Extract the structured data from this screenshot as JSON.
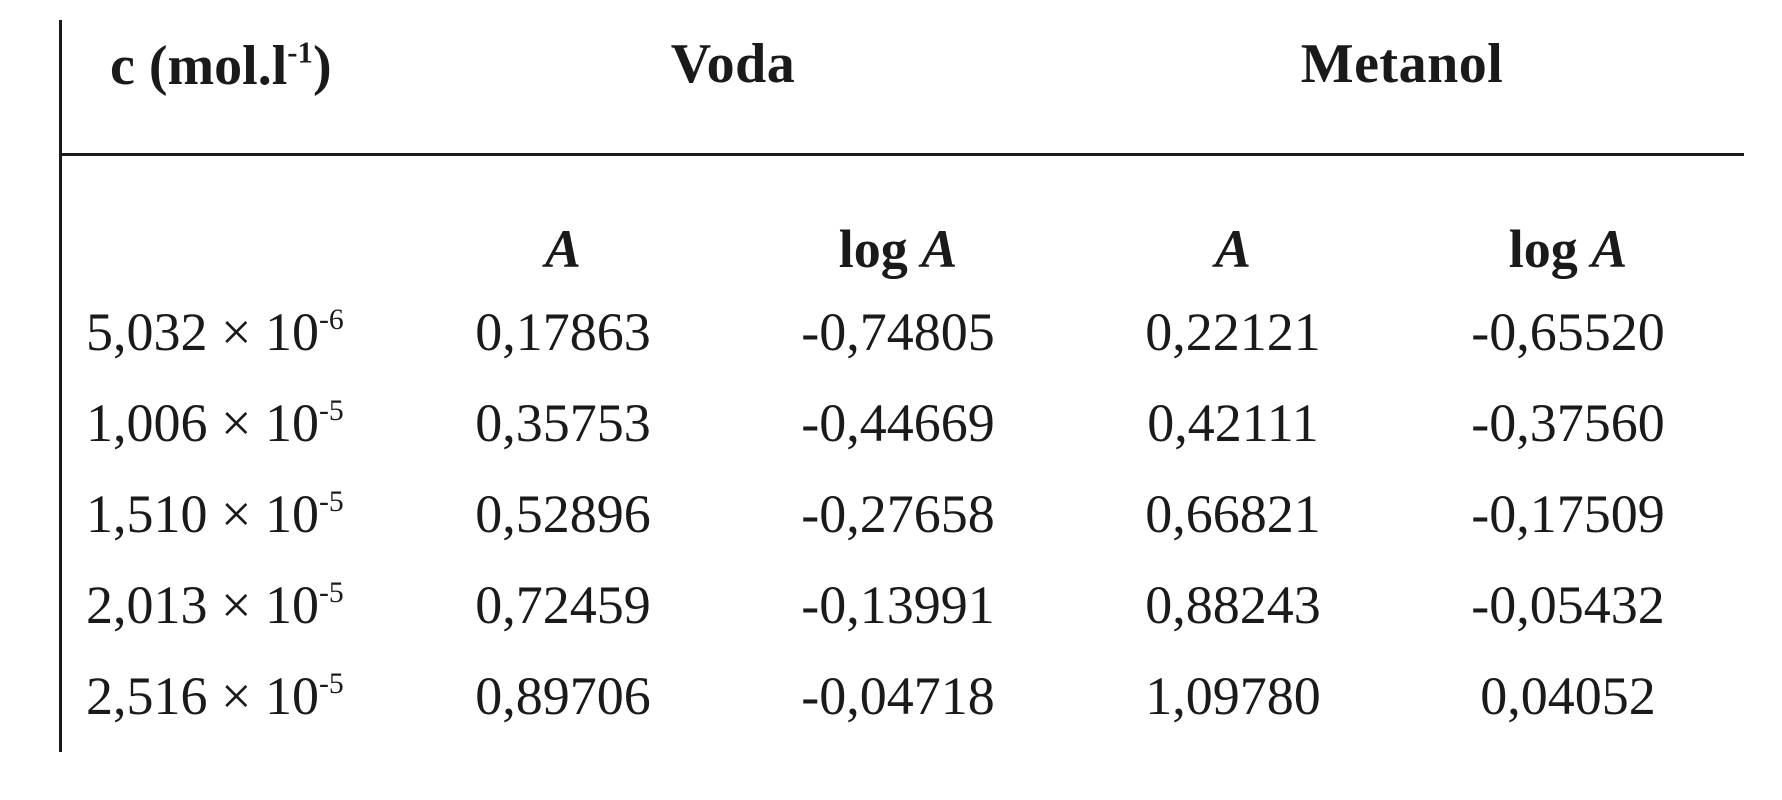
{
  "table": {
    "header": {
      "conc_label": "c (mol.l",
      "conc_exp": "-1",
      "conc_close": ")",
      "group_water": "Voda",
      "group_methanol": "Metanol"
    },
    "subheader": {
      "water_a": "A",
      "water_log_prefix": "log ",
      "water_log_var": "A",
      "methanol_a": "A",
      "methanol_log_prefix": "log ",
      "methanol_log_var": "A"
    },
    "rows": [
      {
        "c_mant": "5,032 × 10",
        "c_exp": "-6",
        "water_a": "0,17863",
        "water_log": "-0,74805",
        "meth_a": "0,22121",
        "meth_log": "-0,65520"
      },
      {
        "c_mant": "1,006 × 10",
        "c_exp": "-5",
        "water_a": "0,35753",
        "water_log": "-0,44669",
        "meth_a": "0,42111",
        "meth_log": "-0,37560"
      },
      {
        "c_mant": "1,510 × 10",
        "c_exp": "-5",
        "water_a": "0,52896",
        "water_log": "-0,27658",
        "meth_a": "0,66821",
        "meth_log": "-0,17509"
      },
      {
        "c_mant": "2,013 × 10",
        "c_exp": "-5",
        "water_a": "0,72459",
        "water_log": "-0,13991",
        "meth_a": "0,88243",
        "meth_log": "-0,05432"
      },
      {
        "c_mant": "2,516 × 10",
        "c_exp": "-5",
        "water_a": "0,89706",
        "water_log": "-0,04718",
        "meth_a": "1,09780",
        "meth_log": "0,04052"
      }
    ]
  }
}
